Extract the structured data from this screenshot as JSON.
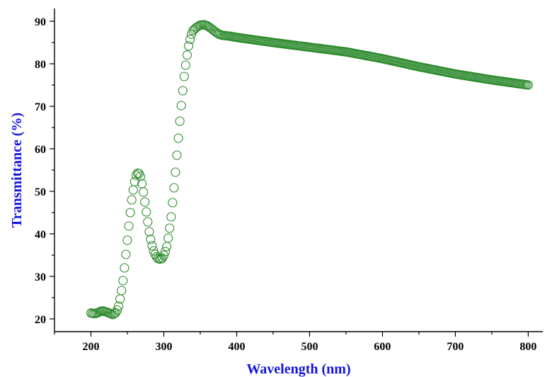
{
  "chart_data": {
    "type": "scatter",
    "title": "",
    "xlabel": "Wavelength (nm)",
    "ylabel": "Transmittance (%)",
    "xlim": [
      150,
      820
    ],
    "ylim": [
      17,
      93
    ],
    "x_ticks": [
      200,
      300,
      400,
      500,
      600,
      700,
      800
    ],
    "y_ticks": [
      20,
      30,
      40,
      50,
      60,
      70,
      80,
      90
    ],
    "grid": false,
    "legend": "none",
    "marker": "open-circle",
    "color": "#2e8b2e",
    "axis_title_color": "#1515e0",
    "curve_keypoints": [
      [
        200,
        21.4
      ],
      [
        205,
        21.2
      ],
      [
        210,
        21.5
      ],
      [
        215,
        21.9
      ],
      [
        220,
        21.7
      ],
      [
        225,
        21.4
      ],
      [
        230,
        21.0
      ],
      [
        235,
        21.6
      ],
      [
        238,
        23.0
      ],
      [
        241,
        25.5
      ],
      [
        244,
        29.0
      ],
      [
        247,
        33.5
      ],
      [
        250,
        38.5
      ],
      [
        253,
        43.5
      ],
      [
        256,
        48.0
      ],
      [
        259,
        51.5
      ],
      [
        262,
        53.8
      ],
      [
        265,
        54.5
      ],
      [
        268,
        53.5
      ],
      [
        271,
        51.0
      ],
      [
        274,
        47.5
      ],
      [
        277,
        44.0
      ],
      [
        280,
        40.5
      ],
      [
        283,
        37.8
      ],
      [
        286,
        36.0
      ],
      [
        289,
        34.8
      ],
      [
        292,
        34.2
      ],
      [
        295,
        34.0
      ],
      [
        298,
        34.3
      ],
      [
        301,
        35.3
      ],
      [
        304,
        37.0
      ],
      [
        307,
        40.0
      ],
      [
        310,
        44.0
      ],
      [
        313,
        49.0
      ],
      [
        316,
        54.5
      ],
      [
        319,
        60.5
      ],
      [
        322,
        66.5
      ],
      [
        325,
        72.0
      ],
      [
        328,
        77.0
      ],
      [
        331,
        81.0
      ],
      [
        334,
        84.2
      ],
      [
        337,
        86.5
      ],
      [
        340,
        87.8
      ],
      [
        345,
        88.6
      ],
      [
        350,
        89.1
      ],
      [
        355,
        89.2
      ],
      [
        360,
        88.9
      ],
      [
        365,
        88.3
      ],
      [
        370,
        87.6
      ],
      [
        375,
        87.0
      ],
      [
        380,
        86.7
      ],
      [
        390,
        86.5
      ],
      [
        400,
        86.2
      ],
      [
        450,
        85.0
      ],
      [
        500,
        83.9
      ],
      [
        550,
        82.8
      ],
      [
        600,
        81.2
      ],
      [
        650,
        79.3
      ],
      [
        700,
        77.6
      ],
      [
        750,
        76.2
      ],
      [
        800,
        75.0
      ]
    ],
    "x_step": 2
  }
}
